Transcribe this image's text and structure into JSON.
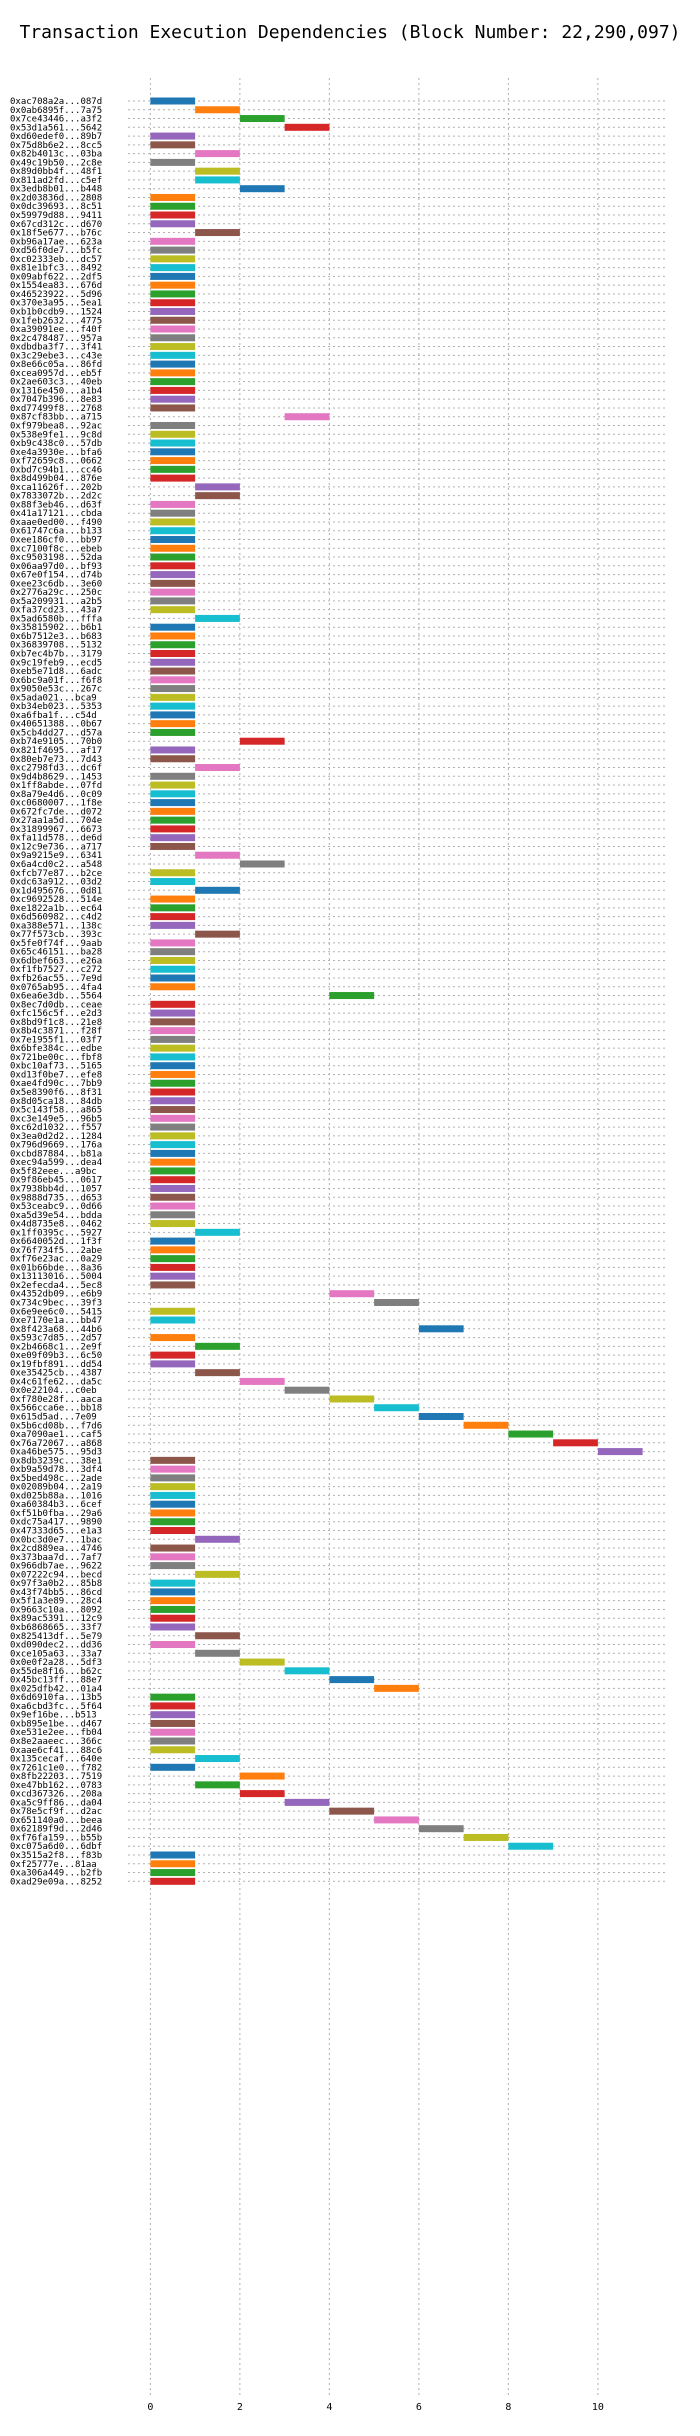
{
  "chart_data": {
    "type": "bar",
    "orientation": "horizontal-gantt",
    "title": "Transaction Execution Dependencies (Block Number: 22,290,097)",
    "xlabel": "",
    "ylabel": "",
    "xlim": [
      -0.5,
      11.5
    ],
    "xticks": [
      0,
      2,
      4,
      6,
      8,
      10
    ],
    "grid": true,
    "palette": [
      "#1f77b4",
      "#ff7f0e",
      "#2ca02c",
      "#d62728",
      "#9467bd",
      "#8c564b",
      "#e377c2",
      "#7f7f7f",
      "#bcbd22",
      "#17becf"
    ],
    "transactions": [
      {
        "hash": "0xac708a2a...087d",
        "start": 0
      },
      {
        "hash": "0x0ab6895f...7a75",
        "start": 1
      },
      {
        "hash": "0x7ce43446...a3f2",
        "start": 2
      },
      {
        "hash": "0x53d1a561...5642",
        "start": 3
      },
      {
        "hash": "0xd60edef0...89b7",
        "start": 0
      },
      {
        "hash": "0x75d8b6e2...8cc5",
        "start": 0
      },
      {
        "hash": "0x82b4013c...03ba",
        "start": 1
      },
      {
        "hash": "0x49c19b50...2c8e",
        "start": 0
      },
      {
        "hash": "0x89d0bb4f...48f1",
        "start": 1
      },
      {
        "hash": "0x811ad2fd...c5ef",
        "start": 1
      },
      {
        "hash": "0x3edb8b01...b448",
        "start": 2
      },
      {
        "hash": "0x2d03836d...2808",
        "start": 0
      },
      {
        "hash": "0x0dc39693...8c51",
        "start": 0
      },
      {
        "hash": "0x59979d88...9411",
        "start": 0
      },
      {
        "hash": "0x67cd312c...d670",
        "start": 0
      },
      {
        "hash": "0x18f5e677...b76c",
        "start": 1
      },
      {
        "hash": "0xb96a17ae...623a",
        "start": 0
      },
      {
        "hash": "0xd56f0de7...b5fc",
        "start": 0
      },
      {
        "hash": "0xc02333eb...dc57",
        "start": 0
      },
      {
        "hash": "0x81e1bfc3...8492",
        "start": 0
      },
      {
        "hash": "0x09abf622...2df5",
        "start": 0
      },
      {
        "hash": "0x1554ea83...676d",
        "start": 0
      },
      {
        "hash": "0x46523922...5d96",
        "start": 0
      },
      {
        "hash": "0x370e3a95...5ea1",
        "start": 0
      },
      {
        "hash": "0xb1b0cdb9...1524",
        "start": 0
      },
      {
        "hash": "0x1feb2632...4775",
        "start": 0
      },
      {
        "hash": "0xa39091ee...f40f",
        "start": 0
      },
      {
        "hash": "0x2c478487...957a",
        "start": 0
      },
      {
        "hash": "0xdbdba3f7...3f41",
        "start": 0
      },
      {
        "hash": "0x3c29ebe3...c43e",
        "start": 0
      },
      {
        "hash": "0x8e66c05a...86fd",
        "start": 0
      },
      {
        "hash": "0xcea0957d...eb5f",
        "start": 0
      },
      {
        "hash": "0x2ae603c3...40eb",
        "start": 0
      },
      {
        "hash": "0x1316e450...a1b4",
        "start": 0
      },
      {
        "hash": "0x7047b396...8e83",
        "start": 0
      },
      {
        "hash": "0xd77499f8...2768",
        "start": 0
      },
      {
        "hash": "0x87cf83bb...a715",
        "start": 3
      },
      {
        "hash": "0xf979bea8...92ac",
        "start": 0
      },
      {
        "hash": "0x538e9fe1...9c8d",
        "start": 0
      },
      {
        "hash": "0xb9c438c0...57db",
        "start": 0
      },
      {
        "hash": "0xe4a3930e...bfa6",
        "start": 0
      },
      {
        "hash": "0xf72659c8...0662",
        "start": 0
      },
      {
        "hash": "0xbd7c94b1...cc46",
        "start": 0
      },
      {
        "hash": "0x8d499b04...876e",
        "start": 0
      },
      {
        "hash": "0xca11626f...202b",
        "start": 1
      },
      {
        "hash": "0x7833072b...2d2c",
        "start": 1
      },
      {
        "hash": "0x88f3eb46...d63f",
        "start": 0
      },
      {
        "hash": "0x41a17121...cbda",
        "start": 0
      },
      {
        "hash": "0xaae0ed00...f490",
        "start": 0
      },
      {
        "hash": "0x61747c6a...b133",
        "start": 0
      },
      {
        "hash": "0xee186cf0...bb97",
        "start": 0
      },
      {
        "hash": "0xc7100f8c...ebeb",
        "start": 0
      },
      {
        "hash": "0xc9503198...52da",
        "start": 0
      },
      {
        "hash": "0x06aa97d0...bf93",
        "start": 0
      },
      {
        "hash": "0x67e0f154...d74b",
        "start": 0
      },
      {
        "hash": "0xee23c6db...3e60",
        "start": 0
      },
      {
        "hash": "0x2776a29c...250c",
        "start": 0
      },
      {
        "hash": "0x5a209931...a2b5",
        "start": 0
      },
      {
        "hash": "0xfa37cd23...43a7",
        "start": 0
      },
      {
        "hash": "0x5ad6580b...fffa",
        "start": 1
      },
      {
        "hash": "0x35815902...b6b1",
        "start": 0
      },
      {
        "hash": "0x6b7512e3...b683",
        "start": 0
      },
      {
        "hash": "0x36839708...5132",
        "start": 0
      },
      {
        "hash": "0xb7ec4b7b...3179",
        "start": 0
      },
      {
        "hash": "0x9c19feb9...ecd5",
        "start": 0
      },
      {
        "hash": "0xeb5e71d8...6adc",
        "start": 0
      },
      {
        "hash": "0x6bc9a01f...f6f8",
        "start": 0
      },
      {
        "hash": "0x9050e53c...267c",
        "start": 0
      },
      {
        "hash": "0x5ada021...bca9",
        "start": 0
      },
      {
        "hash": "0xb34eb023...5353",
        "start": 0
      },
      {
        "hash": "0xa6fba1f...c54d",
        "start": 0
      },
      {
        "hash": "0x40651388...0b67",
        "start": 0
      },
      {
        "hash": "0x5cb4dd27...d57a",
        "start": 0
      },
      {
        "hash": "0xb74e9105...70b0",
        "start": 2
      },
      {
        "hash": "0x821f4695...af17",
        "start": 0
      },
      {
        "hash": "0x80eb7e73...7d43",
        "start": 0
      },
      {
        "hash": "0xc2798fd3...dc6f",
        "start": 1
      },
      {
        "hash": "0x9d4b8629...1453",
        "start": 0
      },
      {
        "hash": "0x1ff8abde...07fd",
        "start": 0
      },
      {
        "hash": "0x8a79e4d6...0c09",
        "start": 0
      },
      {
        "hash": "0xc0680007...1f8e",
        "start": 0
      },
      {
        "hash": "0x672fc7de...d072",
        "start": 0
      },
      {
        "hash": "0x27aa1a5d...704e",
        "start": 0
      },
      {
        "hash": "0x31899967...6673",
        "start": 0
      },
      {
        "hash": "0xfa11d578...de6d",
        "start": 0
      },
      {
        "hash": "0x12c9e736...a717",
        "start": 0
      },
      {
        "hash": "0x9a9215e9...6341",
        "start": 1
      },
      {
        "hash": "0x6a4cd0c2...a548",
        "start": 2
      },
      {
        "hash": "0xfcb77e87...b2ce",
        "start": 0
      },
      {
        "hash": "0xdc63a912...03d2",
        "start": 0
      },
      {
        "hash": "0x1d495676...0d81",
        "start": 1
      },
      {
        "hash": "0xc9692528...514e",
        "start": 0
      },
      {
        "hash": "0xe1822a1b...ec64",
        "start": 0
      },
      {
        "hash": "0x6d560982...c4d2",
        "start": 0
      },
      {
        "hash": "0xa388e571...138c",
        "start": 0
      },
      {
        "hash": "0x77f573cb...393c",
        "start": 1
      },
      {
        "hash": "0x5fe0f74f...9aab",
        "start": 0
      },
      {
        "hash": "0x65c46151...ba28",
        "start": 0
      },
      {
        "hash": "0x6dbef663...e26a",
        "start": 0
      },
      {
        "hash": "0xf1fb7527...c272",
        "start": 0
      },
      {
        "hash": "0xfb26ac55...7e9d",
        "start": 0
      },
      {
        "hash": "0x0765ab95...4fa4",
        "start": 0
      },
      {
        "hash": "0x6ea6e3db...5564",
        "start": 4
      },
      {
        "hash": "0x8ec7d0db...ceae",
        "start": 0
      },
      {
        "hash": "0xfc156c5f...e2d3",
        "start": 0
      },
      {
        "hash": "0x8bd9f1c8...21e8",
        "start": 0
      },
      {
        "hash": "0x8b4c3871...f28f",
        "start": 0
      },
      {
        "hash": "0x7e1955f1...03f7",
        "start": 0
      },
      {
        "hash": "0x6bfe384c...edbe",
        "start": 0
      },
      {
        "hash": "0x721be00c...fbf8",
        "start": 0
      },
      {
        "hash": "0xbc10af73...5165",
        "start": 0
      },
      {
        "hash": "0xd13f0be7...efe8",
        "start": 0
      },
      {
        "hash": "0xae4fd90c...7bb9",
        "start": 0
      },
      {
        "hash": "0x5e8390f6...8f31",
        "start": 0
      },
      {
        "hash": "0x8d05ca18...84db",
        "start": 0
      },
      {
        "hash": "0x5c143f58...a865",
        "start": 0
      },
      {
        "hash": "0xc3e149e5...96b5",
        "start": 0
      },
      {
        "hash": "0xc62d1032...f557",
        "start": 0
      },
      {
        "hash": "0x3ea0d2d2...1284",
        "start": 0
      },
      {
        "hash": "0x796d9669...176a",
        "start": 0
      },
      {
        "hash": "0xcbd87884...b81a",
        "start": 0
      },
      {
        "hash": "0xec94a599...dea4",
        "start": 0
      },
      {
        "hash": "0x5f82eee...a9bc",
        "start": 0
      },
      {
        "hash": "0x9f86eb45...0617",
        "start": 0
      },
      {
        "hash": "0x7938bb4d...1057",
        "start": 0
      },
      {
        "hash": "0x9888d735...d653",
        "start": 0
      },
      {
        "hash": "0x53ceabc9...0d66",
        "start": 0
      },
      {
        "hash": "0xa5d39e54...bdda",
        "start": 0
      },
      {
        "hash": "0x4d8735e8...0462",
        "start": 0
      },
      {
        "hash": "0x1ff0395c...5927",
        "start": 1
      },
      {
        "hash": "0x6640052d...1f3f",
        "start": 0
      },
      {
        "hash": "0x76f734f5...2abe",
        "start": 0
      },
      {
        "hash": "0xf76e23ac...0a29",
        "start": 0
      },
      {
        "hash": "0x01b66bde...8a36",
        "start": 0
      },
      {
        "hash": "0x13113016...5004",
        "start": 0
      },
      {
        "hash": "0x2efecda4...5ec8",
        "start": 0
      },
      {
        "hash": "0x4352db09...e6b9",
        "start": 4
      },
      {
        "hash": "0x734c9bec...39f3",
        "start": 5
      },
      {
        "hash": "0x6e9ee6c0...5415",
        "start": 0
      },
      {
        "hash": "0xe7170e1a...bb47",
        "start": 0
      },
      {
        "hash": "0x8f423a68...44b6",
        "start": 6
      },
      {
        "hash": "0x593c7d85...2d57",
        "start": 0
      },
      {
        "hash": "0x2b4668c1...2e9f",
        "start": 1
      },
      {
        "hash": "0xe09f09b3...6c50",
        "start": 0
      },
      {
        "hash": "0x19fbf891...dd54",
        "start": 0
      },
      {
        "hash": "0xe35425cb...4387",
        "start": 1
      },
      {
        "hash": "0x4c61fe62...da5c",
        "start": 2
      },
      {
        "hash": "0x0e22104...c0eb",
        "start": 3
      },
      {
        "hash": "0xf780e28f...aaca",
        "start": 4
      },
      {
        "hash": "0x566cca6e...bb18",
        "start": 5
      },
      {
        "hash": "0x615d5ad...7e09",
        "start": 6
      },
      {
        "hash": "0x5b6cd08b...f7d6",
        "start": 7
      },
      {
        "hash": "0xa7090ae1...caf5",
        "start": 8
      },
      {
        "hash": "0x76a72067...a868",
        "start": 9
      },
      {
        "hash": "0xa46be575...95d3",
        "start": 10
      },
      {
        "hash": "0x8db3239c...38e1",
        "start": 0
      },
      {
        "hash": "0xb9a59d78...3df4",
        "start": 0
      },
      {
        "hash": "0x5bed498c...2ade",
        "start": 0
      },
      {
        "hash": "0x02089b04...2a19",
        "start": 0
      },
      {
        "hash": "0xd025b88a...1016",
        "start": 0
      },
      {
        "hash": "0xa60384b3...6cef",
        "start": 0
      },
      {
        "hash": "0xf51b0fba...29a6",
        "start": 0
      },
      {
        "hash": "0xdc75a417...9890",
        "start": 0
      },
      {
        "hash": "0x47333d65...e1a3",
        "start": 0
      },
      {
        "hash": "0x0bc3d0e7...1bac",
        "start": 1
      },
      {
        "hash": "0x2cd889ea...4746",
        "start": 0
      },
      {
        "hash": "0x373baa7d...7af7",
        "start": 0
      },
      {
        "hash": "0x966db7ae...9622",
        "start": 0
      },
      {
        "hash": "0x07222c94...becd",
        "start": 1
      },
      {
        "hash": "0x97f3a0b2...85b8",
        "start": 0
      },
      {
        "hash": "0x43f74bb5...86cd",
        "start": 0
      },
      {
        "hash": "0x5f1a3e89...28c4",
        "start": 0
      },
      {
        "hash": "0x9663c10a...8092",
        "start": 0
      },
      {
        "hash": "0x89ac5391...12c9",
        "start": 0
      },
      {
        "hash": "0xb6868665...33f7",
        "start": 0
      },
      {
        "hash": "0x825413df...5e79",
        "start": 1
      },
      {
        "hash": "0xd090dec2...dd36",
        "start": 0
      },
      {
        "hash": "0xce105a63...33a7",
        "start": 1
      },
      {
        "hash": "0x0e0f2a28...5df3",
        "start": 2
      },
      {
        "hash": "0x55de8f16...b62c",
        "start": 3
      },
      {
        "hash": "0x45bc13ff...88e7",
        "start": 4
      },
      {
        "hash": "0x025dfb42...01a4",
        "start": 5
      },
      {
        "hash": "0x6d6910fa...13b5",
        "start": 0
      },
      {
        "hash": "0xa6cbd3fc...5f64",
        "start": 0
      },
      {
        "hash": "0x9ef16be...b513",
        "start": 0
      },
      {
        "hash": "0xb895e1be...d467",
        "start": 0
      },
      {
        "hash": "0xe531e2ee...fb04",
        "start": 0
      },
      {
        "hash": "0x8e2aaeec...366c",
        "start": 0
      },
      {
        "hash": "0xaae6cf41...88c6",
        "start": 0
      },
      {
        "hash": "0x135cecaf...640e",
        "start": 1
      },
      {
        "hash": "0x7261c1e0...f782",
        "start": 0
      },
      {
        "hash": "0x8fb22203...7519",
        "start": 2
      },
      {
        "hash": "0xe47bb162...0783",
        "start": 1
      },
      {
        "hash": "0xcd367326...208a",
        "start": 2
      },
      {
        "hash": "0xa5c9ff86...da04",
        "start": 3
      },
      {
        "hash": "0x78e5cf9f...d2ac",
        "start": 4
      },
      {
        "hash": "0x651140a0...beea",
        "start": 5
      },
      {
        "hash": "0x62189f9d...2d46",
        "start": 6
      },
      {
        "hash": "0xf76fa159...b55b",
        "start": 7
      },
      {
        "hash": "0xc075a6d0...6dbf",
        "start": 8
      },
      {
        "hash": "0x3515a2f8...f83b",
        "start": 0
      },
      {
        "hash": "0xf25777e...81aa",
        "start": 0
      },
      {
        "hash": "0xa306a449...b2fb",
        "start": 0
      },
      {
        "hash": "0xad29e09a...8252",
        "start": 0
      }
    ]
  }
}
